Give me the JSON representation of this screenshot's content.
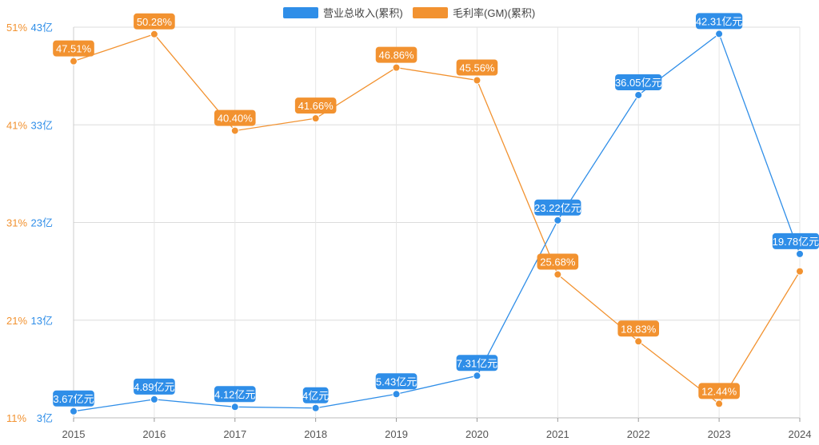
{
  "chart_data": {
    "type": "line",
    "categories": [
      "2015",
      "2016",
      "2017",
      "2018",
      "2019",
      "2020",
      "2021",
      "2022",
      "2023",
      "2024"
    ],
    "series": [
      {
        "name": "营业总收入(累积)",
        "color": "#2f8ee8",
        "axis": "left",
        "values": [
          3.67,
          4.89,
          4.12,
          4.0,
          5.43,
          7.31,
          23.22,
          36.05,
          42.31,
          19.78
        ],
        "labels": [
          "3.67亿元",
          "4.89亿元",
          "4.12亿元",
          "4亿元",
          "5.43亿元",
          "7.31亿元",
          "23.22亿元",
          "36.05亿元",
          "42.31亿元",
          "19.78亿元"
        ]
      },
      {
        "name": "毛利率(GM)(累积)",
        "color": "#f29230",
        "axis": "right",
        "values": [
          47.51,
          50.28,
          40.4,
          41.66,
          46.86,
          45.56,
          25.68,
          18.83,
          12.44,
          26.0
        ],
        "labels": [
          "47.51%",
          "50.28%",
          "40.40%",
          "41.66%",
          "46.86%",
          "45.56%",
          "25.68%",
          "18.83%",
          "12.44%",
          ""
        ]
      }
    ],
    "y_left": {
      "ylim": [
        3,
        43
      ],
      "ticks": [
        "3亿",
        "13亿",
        "23亿",
        "33亿",
        "43亿"
      ],
      "color": "#2f8ee8"
    },
    "y_right": {
      "ylim": [
        11,
        51
      ],
      "ticks": [
        "11%",
        "21%",
        "31%",
        "41%",
        "51%"
      ],
      "color": "#f29230"
    },
    "grid": true,
    "legend_position": "top-center"
  }
}
